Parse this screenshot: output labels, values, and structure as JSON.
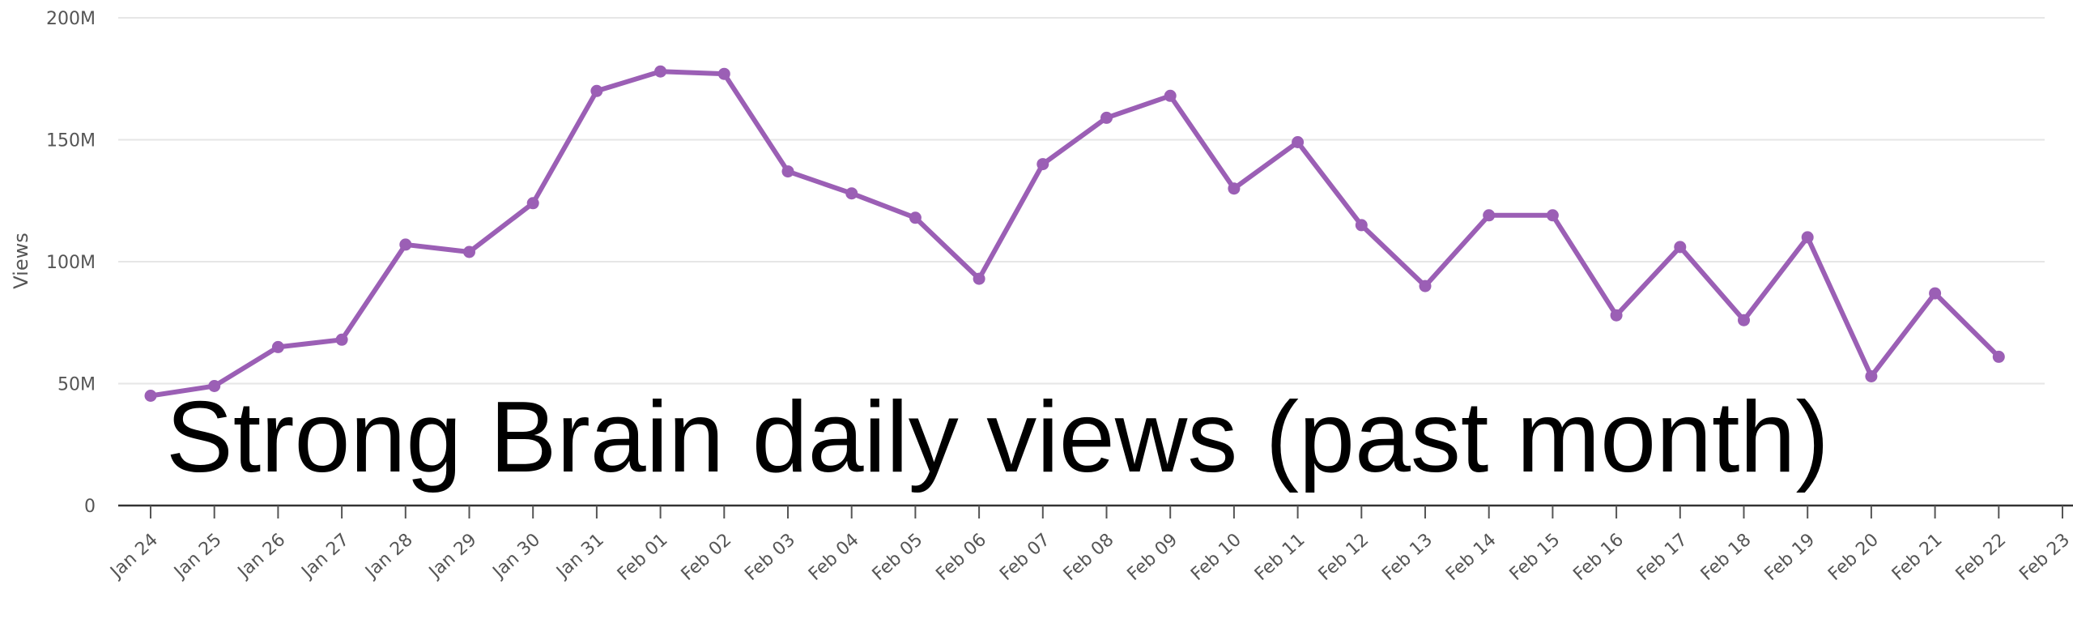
{
  "chart_data": {
    "type": "line",
    "title": "Strong Brain daily views (past month)",
    "xlabel": "",
    "ylabel": "Views",
    "categories": [
      "Jan 24",
      "Jan 25",
      "Jan 26",
      "Jan 27",
      "Jan 28",
      "Jan 29",
      "Jan 30",
      "Jan 31",
      "Feb 01",
      "Feb 02",
      "Feb 03",
      "Feb 04",
      "Feb 05",
      "Feb 06",
      "Feb 07",
      "Feb 08",
      "Feb 09",
      "Feb 10",
      "Feb 11",
      "Feb 12",
      "Feb 13",
      "Feb 14",
      "Feb 15",
      "Feb 16",
      "Feb 17",
      "Feb 18",
      "Feb 19",
      "Feb 20",
      "Feb 21",
      "Feb 22",
      "Feb 23"
    ],
    "series": [
      {
        "color": "#9b5fb5",
        "values": [
          45,
          49,
          65,
          68,
          107,
          104,
          124,
          170,
          178,
          177,
          137,
          128,
          118,
          93,
          140,
          159,
          168,
          130,
          149,
          115,
          90,
          119,
          119,
          78,
          106,
          76,
          110,
          53,
          87,
          61,
          null
        ]
      }
    ],
    "yticks": [
      0,
      50,
      100,
      150,
      200
    ],
    "ytick_labels": [
      "0",
      "50M",
      "100M",
      "150M",
      "200M"
    ],
    "ylim": [
      0,
      200
    ],
    "grid": true,
    "legend": "none"
  }
}
